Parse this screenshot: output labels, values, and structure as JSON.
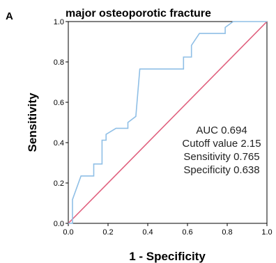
{
  "panel_label": "A",
  "chart_data": {
    "type": "line",
    "title": "major osteoporotic fracture",
    "xlabel": "1 - Specificity",
    "ylabel": "Sensitivity",
    "xlim": [
      0,
      1
    ],
    "ylim": [
      0,
      1
    ],
    "x_ticks": [
      "0.0",
      "0.2",
      "0.4",
      "0.6",
      "0.8",
      "1.0"
    ],
    "y_ticks": [
      "0.0",
      "0.2",
      "0.4",
      "0.6",
      "0.8",
      "1.0"
    ],
    "grid": false,
    "series": [
      {
        "color": "#8fbfe6",
        "x": [
          0,
          0.021,
          0.021,
          0.064,
          0.064,
          0.128,
          0.128,
          0.17,
          0.17,
          0.19,
          0.19,
          0.24,
          0.24,
          0.3,
          0.3,
          0.34,
          0.34,
          0.36,
          0.36,
          0.58,
          0.58,
          0.62,
          0.62,
          0.66,
          0.66,
          0.79,
          0.79,
          0.83,
          0.83,
          1.0
        ],
        "y": [
          0,
          0,
          0.118,
          0.235,
          0.235,
          0.235,
          0.294,
          0.294,
          0.412,
          0.412,
          0.441,
          0.471,
          0.471,
          0.471,
          0.5,
          0.53,
          0.53,
          0.765,
          0.765,
          0.765,
          0.824,
          0.824,
          0.882,
          0.941,
          0.941,
          0.941,
          0.971,
          1.0,
          1.0,
          1.0
        ]
      },
      {
        "color": "#e0607e",
        "x": [
          0,
          1
        ],
        "y": [
          0,
          1
        ]
      }
    ],
    "annotations": [
      "AUC 0.694",
      "Cutoff value 2.15",
      "Sensitivity 0.765",
      "Specificity 0.638"
    ]
  }
}
